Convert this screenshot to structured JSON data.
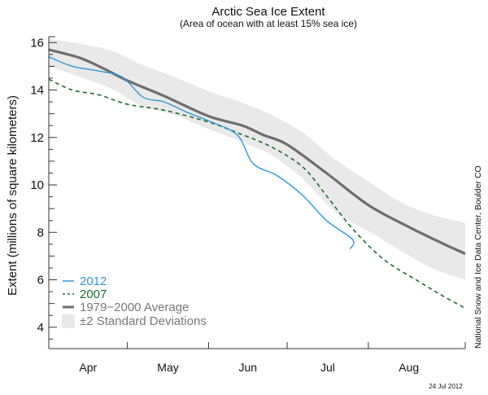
{
  "chart_data": {
    "type": "line",
    "title": "Arctic Sea Ice Extent",
    "subtitle": "(Area of ocean with at least 15% sea ice)",
    "xlabel": "",
    "ylabel": "Extent (millions of square kilometers)",
    "x_unit": "day of year",
    "xlim": [
      91,
      250
    ],
    "ylim": [
      3.1,
      16.25
    ],
    "y_ticks_major": [
      4,
      6,
      8,
      10,
      12,
      14,
      16
    ],
    "y_ticks_minor_step": 0.5,
    "month_boundaries": [
      121,
      152,
      182,
      213
    ],
    "months": [
      {
        "label": "Apr",
        "start": 91,
        "end": 121
      },
      {
        "label": "May",
        "start": 121,
        "end": 152
      },
      {
        "label": "Jun",
        "start": 152,
        "end": 182
      },
      {
        "label": "Jul",
        "start": 182,
        "end": 213
      },
      {
        "label": "Aug",
        "start": 213,
        "end": 244
      }
    ],
    "grid": false,
    "legend_position": "bottom-left",
    "band": {
      "name": "±2 Standard Deviations",
      "color": "#e9e9e9",
      "x": [
        91,
        103,
        115,
        127,
        139,
        152,
        164,
        176,
        188,
        200,
        213,
        225,
        237,
        250
      ],
      "upper": [
        16.15,
        15.95,
        15.65,
        15.05,
        14.55,
        13.95,
        13.5,
        12.95,
        12.2,
        11.1,
        10.15,
        9.3,
        8.75,
        8.4
      ],
      "lower": [
        15.0,
        14.55,
        14.05,
        13.3,
        12.95,
        12.35,
        11.85,
        11.25,
        10.25,
        8.9,
        8.05,
        7.25,
        6.5,
        6.0
      ]
    },
    "series": [
      {
        "name": "1979−2000 Average",
        "color": "#6e6e6e",
        "style": "solid-thick",
        "x": [
          91,
          103,
          112,
          121,
          135,
          152,
          165,
          173,
          182,
          197,
          213,
          228,
          241,
          250
        ],
        "values": [
          15.7,
          15.35,
          14.9,
          14.4,
          13.75,
          12.9,
          12.5,
          12.1,
          11.7,
          10.5,
          9.15,
          8.25,
          7.55,
          7.1
        ]
      },
      {
        "name": "2012",
        "color": "#2e98dc",
        "style": "solid",
        "x": [
          91,
          100,
          110,
          119,
          127,
          135,
          144,
          152,
          163,
          169,
          178,
          188,
          197,
          207,
          206
        ],
        "values": [
          15.4,
          15.0,
          14.8,
          14.55,
          13.7,
          13.5,
          13.05,
          12.7,
          12.1,
          10.9,
          10.4,
          9.55,
          8.5,
          7.7,
          7.3
        ]
      },
      {
        "name": "2007",
        "color": "#1e6b2c",
        "style": "dashed",
        "x": [
          91,
          100,
          110,
          121,
          135,
          152,
          163,
          176,
          188,
          197,
          207,
          219,
          232,
          241,
          250
        ],
        "values": [
          14.45,
          14.0,
          13.8,
          13.4,
          13.15,
          12.65,
          12.2,
          11.6,
          10.75,
          9.55,
          8.15,
          6.85,
          5.95,
          5.35,
          4.8
        ]
      }
    ],
    "legend": [
      {
        "label": "2012",
        "color": "#2e98dc",
        "marker": "solid-line"
      },
      {
        "label": "2007",
        "color": "#1e6b2c",
        "marker": "dashed-line"
      },
      {
        "label": "1979−2000 Average",
        "color": "#6e6e6e",
        "marker": "thick-line"
      },
      {
        "label": "±2 Standard Deviations",
        "color": "#777777",
        "marker": "shaded-box"
      }
    ],
    "annotations": {
      "credit": "National Snow and Ice Data Center, Boulder CO",
      "date": "24 Jul 2012"
    }
  }
}
